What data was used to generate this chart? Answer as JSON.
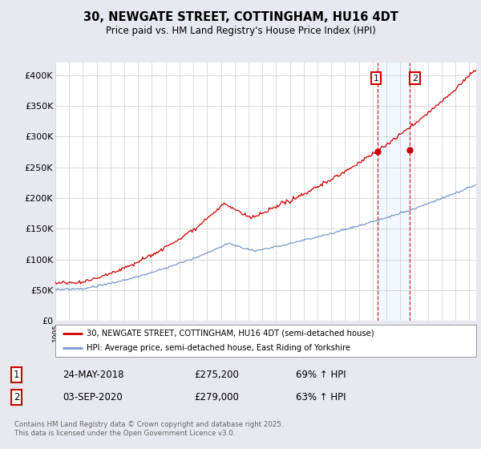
{
  "title_line1": "30, NEWGATE STREET, COTTINGHAM, HU16 4DT",
  "title_line2": "Price paid vs. HM Land Registry's House Price Index (HPI)",
  "background_color": "#e8e8f0",
  "plot_bg_color": "#ffffff",
  "red_color": "#cc0000",
  "blue_color": "#7799cc",
  "vline_color": "#cc0000",
  "highlight_bg": "#ddeeff",
  "ylim": [
    0,
    420000
  ],
  "yticks": [
    0,
    50000,
    100000,
    150000,
    200000,
    250000,
    300000,
    350000,
    400000
  ],
  "ytick_labels": [
    "£0",
    "£50K",
    "£100K",
    "£150K",
    "£200K",
    "£250K",
    "£300K",
    "£350K",
    "£400K"
  ],
  "legend1": "30, NEWGATE STREET, COTTINGHAM, HU16 4DT (semi-detached house)",
  "legend2": "HPI: Average price, semi-detached house, East Riding of Yorkshire",
  "sale1_date": "24-MAY-2018",
  "sale1_price": "£275,200",
  "sale1_hpi": "69% ↑ HPI",
  "sale2_date": "03-SEP-2020",
  "sale2_price": "£279,000",
  "sale2_hpi": "63% ↑ HPI",
  "sale1_year": 2018.38,
  "sale2_year": 2020.67,
  "sale1_price_val": 275200,
  "sale2_price_val": 279000,
  "footer": "Contains HM Land Registry data © Crown copyright and database right 2025.\nThis data is licensed under the Open Government Licence v3.0.",
  "xmin": 1995,
  "xmax": 2025.5
}
